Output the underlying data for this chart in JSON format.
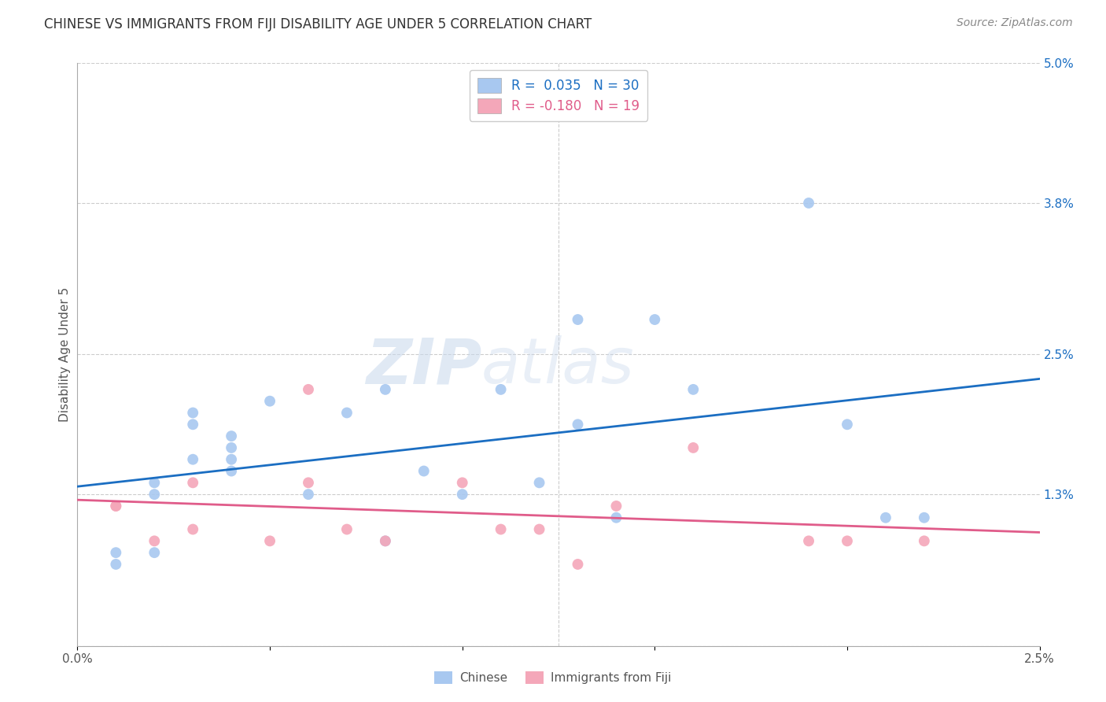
{
  "title": "CHINESE VS IMMIGRANTS FROM FIJI DISABILITY AGE UNDER 5 CORRELATION CHART",
  "source": "Source: ZipAtlas.com",
  "ylabel": "Disability Age Under 5",
  "xlim": [
    0.0,
    0.025
  ],
  "ylim": [
    0.0,
    0.05
  ],
  "xticks": [
    0.0,
    0.005,
    0.01,
    0.015,
    0.02,
    0.025
  ],
  "xtick_labels": [
    "0.0%",
    "",
    "",
    "",
    "",
    "2.5%"
  ],
  "yticks_right": [
    0.0,
    0.013,
    0.025,
    0.038,
    0.05
  ],
  "ytick_labels_right": [
    "",
    "1.3%",
    "2.5%",
    "3.8%",
    "5.0%"
  ],
  "chinese_x": [
    0.001,
    0.001,
    0.002,
    0.002,
    0.002,
    0.003,
    0.003,
    0.003,
    0.004,
    0.004,
    0.004,
    0.004,
    0.005,
    0.006,
    0.007,
    0.008,
    0.008,
    0.009,
    0.01,
    0.011,
    0.012,
    0.013,
    0.013,
    0.014,
    0.015,
    0.016,
    0.019,
    0.02,
    0.021,
    0.022
  ],
  "chinese_y": [
    0.007,
    0.008,
    0.013,
    0.014,
    0.008,
    0.019,
    0.02,
    0.016,
    0.017,
    0.018,
    0.015,
    0.016,
    0.021,
    0.013,
    0.02,
    0.022,
    0.009,
    0.015,
    0.013,
    0.022,
    0.014,
    0.028,
    0.019,
    0.011,
    0.028,
    0.022,
    0.038,
    0.019,
    0.011,
    0.011
  ],
  "fiji_x": [
    0.001,
    0.001,
    0.002,
    0.003,
    0.003,
    0.005,
    0.006,
    0.006,
    0.007,
    0.008,
    0.01,
    0.011,
    0.012,
    0.013,
    0.014,
    0.016,
    0.019,
    0.02,
    0.022
  ],
  "fiji_y": [
    0.012,
    0.012,
    0.009,
    0.01,
    0.014,
    0.009,
    0.022,
    0.014,
    0.01,
    0.009,
    0.014,
    0.01,
    0.01,
    0.007,
    0.012,
    0.017,
    0.009,
    0.009,
    0.009
  ],
  "chinese_color": "#A8C8F0",
  "fiji_color": "#F4A7B9",
  "chinese_line_color": "#1B6EC2",
  "fiji_line_color": "#E05C8A",
  "chinese_R": 0.035,
  "chinese_N": 30,
  "fiji_R": -0.18,
  "fiji_N": 19,
  "marker_size": 100,
  "watermark_zip": "ZIP",
  "watermark_atlas": "atlas",
  "background_color": "#FFFFFF",
  "grid_color": "#CCCCCC"
}
